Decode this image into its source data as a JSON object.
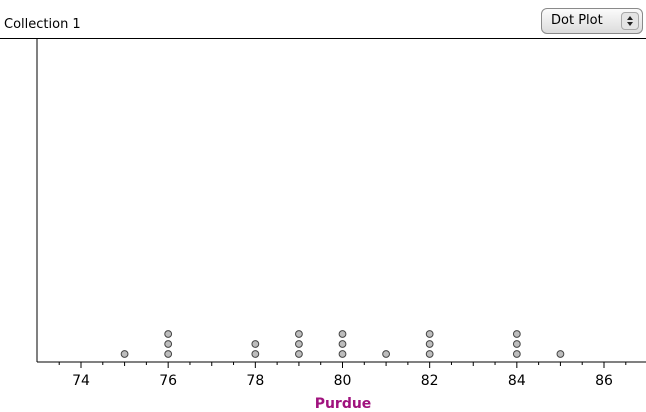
{
  "header": {
    "title": "Collection 1",
    "plot_type": "Dot Plot"
  },
  "chart_data": {
    "type": "dotplot",
    "xlabel": "Purdue",
    "ylabel": "",
    "xlim": [
      73,
      87
    ],
    "major_ticks": [
      74,
      76,
      78,
      80,
      82,
      84,
      86
    ],
    "tick_labels": [
      "74",
      "76",
      "78",
      "80",
      "82",
      "84",
      "86"
    ],
    "points": [
      {
        "x": 75,
        "count": 1
      },
      {
        "x": 76,
        "count": 3
      },
      {
        "x": 78,
        "count": 2
      },
      {
        "x": 79,
        "count": 3
      },
      {
        "x": 80,
        "count": 3
      },
      {
        "x": 81,
        "count": 1
      },
      {
        "x": 82,
        "count": 3
      },
      {
        "x": 84,
        "count": 3
      },
      {
        "x": 85,
        "count": 1
      }
    ],
    "colors": {
      "dot_fill": "#bdbdbd",
      "dot_stroke": "#444444",
      "axis_label": "#a0127e"
    }
  }
}
